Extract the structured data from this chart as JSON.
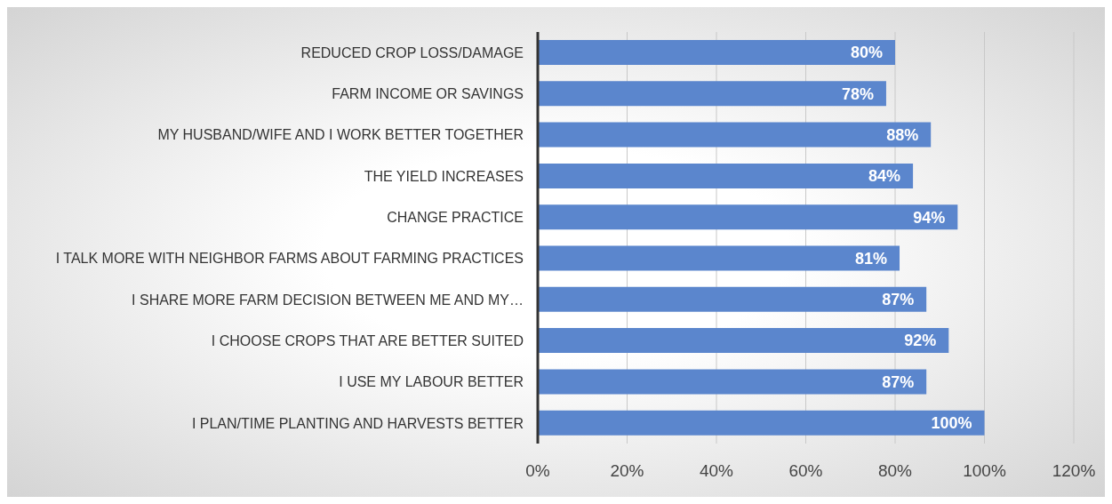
{
  "chart_data": {
    "type": "bar",
    "orientation": "horizontal",
    "categories": [
      "REDUCED CROP LOSS/DAMAGE",
      "FARM INCOME OR SAVINGS",
      "MY HUSBAND/WIFE AND I WORK BETTER TOGETHER",
      "THE YIELD INCREASES",
      "CHANGE PRACTICE",
      "I TALK MORE WITH NEIGHBOR FARMS ABOUT FARMING PRACTICES",
      "I SHARE MORE FARM DECISION BETWEEN ME AND MY…",
      "I CHOOSE CROPS THAT ARE BETTER SUITED",
      "I USE MY LABOUR BETTER",
      "I PLAN/TIME PLANTING AND HARVESTS BETTER"
    ],
    "values": [
      80,
      78,
      88,
      84,
      94,
      81,
      87,
      92,
      87,
      100
    ],
    "value_labels": [
      "80%",
      "78%",
      "88%",
      "84%",
      "94%",
      "81%",
      "87%",
      "92%",
      "87%",
      "100%"
    ],
    "color": "#5b86cd",
    "xlim": [
      0,
      120
    ],
    "xticks": [
      {
        "value": 0,
        "label": "0%"
      },
      {
        "value": 20,
        "label": "20%"
      },
      {
        "value": 40,
        "label": "40%"
      },
      {
        "value": 60,
        "label": "60%"
      },
      {
        "value": 80,
        "label": "80%"
      },
      {
        "value": 100,
        "label": "100%"
      },
      {
        "value": 120,
        "label": "120%"
      }
    ],
    "grid": "x"
  }
}
